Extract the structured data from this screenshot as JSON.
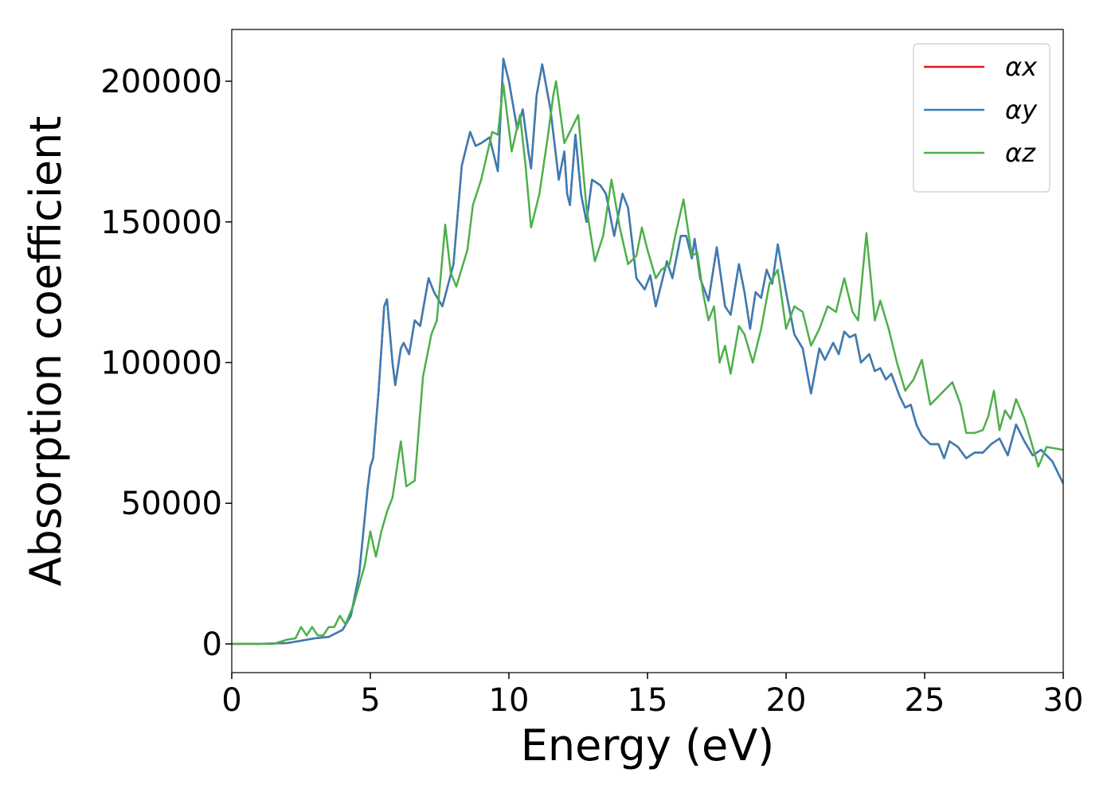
{
  "chart_data": {
    "type": "line",
    "xlabel": "Energy (eV)",
    "ylabel": "Absorption coefficient",
    "xlim": [
      0,
      30
    ],
    "xticks": [
      0,
      5,
      10,
      15,
      20,
      25,
      30
    ],
    "ylim": [
      -10200,
      218400
    ],
    "yticks": [
      0,
      50000,
      100000,
      150000,
      200000
    ],
    "legend": "upper right",
    "series": [
      {
        "name": "αx",
        "color": "#e41a1c",
        "x": [
          0,
          1,
          2,
          3,
          3.5,
          4,
          4.3,
          4.6,
          4.9,
          5.0,
          5.1,
          5.3,
          5.5,
          5.6,
          5.8,
          5.9,
          6.1,
          6.2,
          6.4,
          6.6,
          6.8,
          7.1,
          7.3,
          7.6,
          8.0,
          8.3,
          8.6,
          8.8,
          9.0,
          9.3,
          9.6,
          9.8,
          10.0,
          10.3,
          10.5,
          10.7,
          10.8,
          11.0,
          11.2,
          11.5,
          11.8,
          12.0,
          12.1,
          12.2,
          12.4,
          12.6,
          12.8,
          13.0,
          13.3,
          13.5,
          13.8,
          14.1,
          14.3,
          14.6,
          14.9,
          15.1,
          15.3,
          15.6,
          15.7,
          15.9,
          16.2,
          16.4,
          16.6,
          16.7,
          16.9,
          17.2,
          17.5,
          17.8,
          18.0,
          18.3,
          18.5,
          18.7,
          18.9,
          19.1,
          19.3,
          19.5,
          19.7,
          20.0,
          20.3,
          20.6,
          20.9,
          21.2,
          21.4,
          21.7,
          21.9,
          22.1,
          22.3,
          22.5,
          22.7,
          23.0,
          23.2,
          23.4,
          23.6,
          23.8,
          24.1,
          24.3,
          24.5,
          24.7,
          24.9,
          25.2,
          25.5,
          25.7,
          25.9,
          26.2,
          26.5,
          26.8,
          27.1,
          27.4,
          27.7,
          28.0,
          28.3,
          28.6,
          28.9,
          29.2,
          29.6,
          30
        ],
        "values": [
          0,
          0,
          300,
          2000,
          2500,
          5000,
          10000,
          25000,
          55000,
          63000,
          66000,
          90000,
          120000,
          122500,
          100000,
          92000,
          105000,
          107000,
          103000,
          115000,
          113000,
          130000,
          125000,
          120000,
          135000,
          170000,
          182000,
          177000,
          178000,
          180000,
          168000,
          208000,
          200000,
          183000,
          190000,
          175000,
          169000,
          195000,
          206000,
          190000,
          165000,
          175000,
          160000,
          156000,
          181000,
          160000,
          150000,
          165000,
          163000,
          160000,
          145000,
          160000,
          155000,
          130000,
          126000,
          131000,
          120000,
          132000,
          136000,
          130000,
          145000,
          145000,
          137000,
          144000,
          130000,
          122000,
          141000,
          120000,
          117000,
          135000,
          125000,
          112000,
          125000,
          123000,
          133000,
          128000,
          142000,
          125000,
          110000,
          105000,
          89000,
          105000,
          101000,
          107000,
          103000,
          111000,
          109000,
          110000,
          100000,
          103000,
          97000,
          98000,
          94000,
          96000,
          88000,
          84000,
          85000,
          78000,
          74000,
          71000,
          71000,
          66000,
          72000,
          70000,
          66000,
          68000,
          68000,
          71000,
          73000,
          67000,
          78000,
          72000,
          67000,
          69000,
          65000,
          57000
        ]
      },
      {
        "name": "αy",
        "color": "#377eb8",
        "x": [
          0,
          1,
          2,
          3,
          3.5,
          4,
          4.3,
          4.6,
          4.9,
          5.0,
          5.1,
          5.3,
          5.5,
          5.6,
          5.8,
          5.9,
          6.1,
          6.2,
          6.4,
          6.6,
          6.8,
          7.1,
          7.3,
          7.6,
          8.0,
          8.3,
          8.6,
          8.8,
          9.0,
          9.3,
          9.6,
          9.8,
          10.0,
          10.3,
          10.5,
          10.7,
          10.8,
          11.0,
          11.2,
          11.5,
          11.8,
          12.0,
          12.1,
          12.2,
          12.4,
          12.6,
          12.8,
          13.0,
          13.3,
          13.5,
          13.8,
          14.1,
          14.3,
          14.6,
          14.9,
          15.1,
          15.3,
          15.6,
          15.7,
          15.9,
          16.2,
          16.4,
          16.6,
          16.7,
          16.9,
          17.2,
          17.5,
          17.8,
          18.0,
          18.3,
          18.5,
          18.7,
          18.9,
          19.1,
          19.3,
          19.5,
          19.7,
          20.0,
          20.3,
          20.6,
          20.9,
          21.2,
          21.4,
          21.7,
          21.9,
          22.1,
          22.3,
          22.5,
          22.7,
          23.0,
          23.2,
          23.4,
          23.6,
          23.8,
          24.1,
          24.3,
          24.5,
          24.7,
          24.9,
          25.2,
          25.5,
          25.7,
          25.9,
          26.2,
          26.5,
          26.8,
          27.1,
          27.4,
          27.7,
          28.0,
          28.3,
          28.6,
          28.9,
          29.2,
          29.6,
          30
        ],
        "values": [
          0,
          0,
          300,
          2000,
          2500,
          5000,
          10000,
          25000,
          55000,
          63000,
          66000,
          90000,
          120000,
          122500,
          100000,
          92000,
          105000,
          107000,
          103000,
          115000,
          113000,
          130000,
          125000,
          120000,
          135000,
          170000,
          182000,
          177000,
          178000,
          180000,
          168000,
          208000,
          200000,
          183000,
          190000,
          175000,
          169000,
          195000,
          206000,
          190000,
          165000,
          175000,
          160000,
          156000,
          181000,
          160000,
          150000,
          165000,
          163000,
          160000,
          145000,
          160000,
          155000,
          130000,
          126000,
          131000,
          120000,
          132000,
          136000,
          130000,
          145000,
          145000,
          137000,
          144000,
          130000,
          122000,
          141000,
          120000,
          117000,
          135000,
          125000,
          112000,
          125000,
          123000,
          133000,
          128000,
          142000,
          125000,
          110000,
          105000,
          89000,
          105000,
          101000,
          107000,
          103000,
          111000,
          109000,
          110000,
          100000,
          103000,
          97000,
          98000,
          94000,
          96000,
          88000,
          84000,
          85000,
          78000,
          74000,
          71000,
          71000,
          66000,
          72000,
          70000,
          66000,
          68000,
          68000,
          71000,
          73000,
          67000,
          78000,
          72000,
          67000,
          69000,
          65000,
          57000
        ]
      },
      {
        "name": "αz",
        "color": "#4daf4a",
        "x": [
          0,
          1.5,
          2,
          2.3,
          2.5,
          2.7,
          2.9,
          3.1,
          3.3,
          3.5,
          3.7,
          3.9,
          4.1,
          4.4,
          4.8,
          5.0,
          5.2,
          5.4,
          5.6,
          5.8,
          6.1,
          6.3,
          6.6,
          6.9,
          7.2,
          7.4,
          7.7,
          7.9,
          8.1,
          8.5,
          8.7,
          9.0,
          9.4,
          9.6,
          9.8,
          10.1,
          10.4,
          10.6,
          10.8,
          11.1,
          11.4,
          11.6,
          11.7,
          12.0,
          12.2,
          12.5,
          12.8,
          13.1,
          13.4,
          13.7,
          14.0,
          14.3,
          14.6,
          14.8,
          15.0,
          15.3,
          15.5,
          15.8,
          16.0,
          16.3,
          16.6,
          16.8,
          17.0,
          17.2,
          17.4,
          17.6,
          17.8,
          18.0,
          18.3,
          18.5,
          18.8,
          19.1,
          19.4,
          19.7,
          20.0,
          20.3,
          20.6,
          20.9,
          21.2,
          21.5,
          21.8,
          22.1,
          22.4,
          22.6,
          22.9,
          23.2,
          23.4,
          23.7,
          24.0,
          24.3,
          24.6,
          24.9,
          25.2,
          25.5,
          25.7,
          26.0,
          26.3,
          26.5,
          26.8,
          27.1,
          27.3,
          27.5,
          27.7,
          27.9,
          28.1,
          28.3,
          28.6,
          28.9,
          29.1,
          29.4,
          30
        ],
        "values": [
          0,
          0,
          1500,
          2000,
          6000,
          3000,
          6000,
          3000,
          3000,
          6000,
          6000,
          10000,
          7000,
          14000,
          28000,
          40000,
          31000,
          40000,
          47000,
          52000,
          72000,
          56000,
          58000,
          95000,
          110000,
          115000,
          149000,
          132000,
          127000,
          140000,
          156000,
          165000,
          182000,
          181000,
          199000,
          175000,
          188000,
          170000,
          148000,
          160000,
          180000,
          195000,
          200000,
          178000,
          182000,
          188000,
          155000,
          136000,
          145000,
          165000,
          148000,
          135000,
          138000,
          148000,
          140000,
          130000,
          133000,
          135000,
          145000,
          158000,
          138000,
          139000,
          125000,
          115000,
          120000,
          100000,
          106000,
          96000,
          113000,
          110000,
          100000,
          112000,
          128000,
          133000,
          112000,
          120000,
          118000,
          106000,
          112000,
          120000,
          118000,
          130000,
          118000,
          115000,
          146000,
          115000,
          122000,
          112000,
          100000,
          90000,
          94000,
          101000,
          85000,
          88000,
          90000,
          93000,
          85000,
          75000,
          75000,
          76000,
          81000,
          90000,
          76000,
          83000,
          80000,
          87000,
          80000,
          70000,
          63000,
          70000,
          69000
        ]
      }
    ]
  }
}
